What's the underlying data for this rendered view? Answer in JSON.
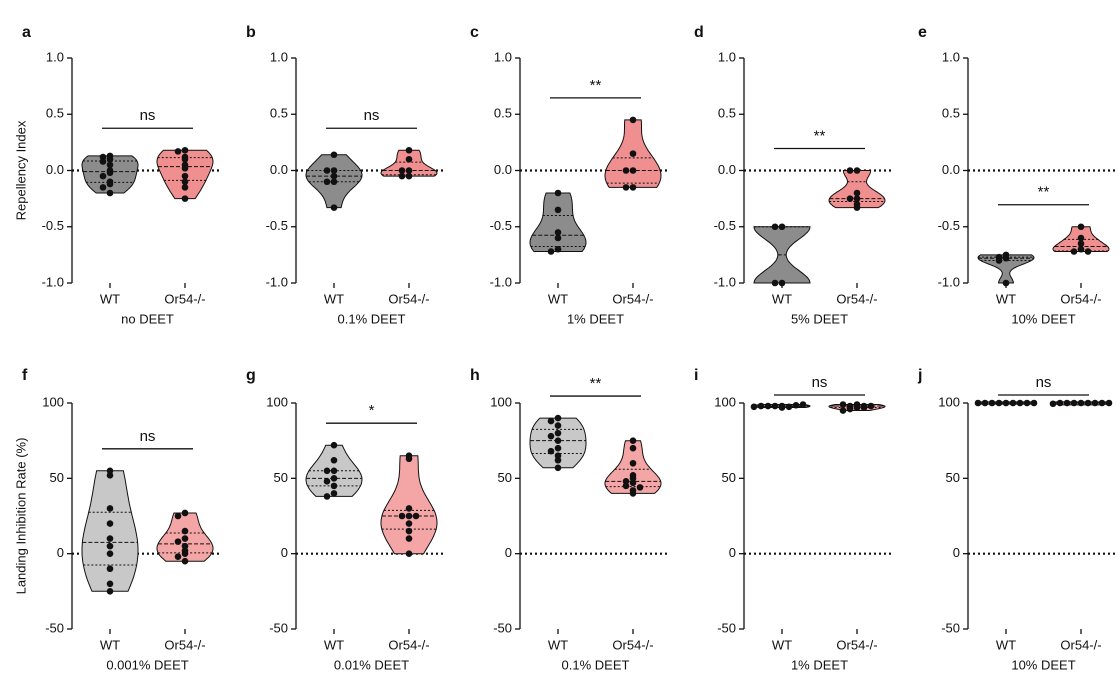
{
  "chart_data": [
    {
      "type": "violin",
      "panel": "a",
      "xlabel": "no DEET",
      "ylabel": "Repellency Index",
      "categories": [
        "WT",
        "Or54-/-"
      ],
      "significance": "ns",
      "reference_line": 0,
      "ylim": [
        -1,
        1
      ],
      "yticks": [
        {
          "value": -1,
          "label": "-1.0"
        },
        {
          "value": -0.5,
          "label": "-0.5"
        },
        {
          "value": 0,
          "label": "0.0"
        },
        {
          "value": 0.5,
          "label": "0.5"
        },
        {
          "value": 1,
          "label": "1.0"
        }
      ],
      "series": [
        {
          "name": "WT",
          "color": "#8c8c8c",
          "values": [
            0.13,
            0.12,
            0.1,
            0.08,
            0.05,
            0.0,
            -0.02,
            -0.05,
            -0.1,
            -0.12,
            -0.15,
            -0.2
          ]
        },
        {
          "name": "Or54-/-",
          "color": "#f08f8f",
          "values": [
            0.18,
            0.17,
            0.12,
            0.1,
            0.05,
            0.02,
            -0.05,
            -0.1,
            -0.15,
            -0.25
          ]
        }
      ]
    },
    {
      "type": "violin",
      "panel": "b",
      "xlabel": "0.1% DEET",
      "categories": [
        "WT",
        "Or54-/-"
      ],
      "significance": "ns",
      "reference_line": 0,
      "ylim": [
        -1,
        1
      ],
      "yticks": [
        {
          "value": -1,
          "label": "-1.0"
        },
        {
          "value": -0.5,
          "label": "-0.5"
        },
        {
          "value": 0,
          "label": "0.0"
        },
        {
          "value": 0.5,
          "label": "0.5"
        },
        {
          "value": 1,
          "label": "1.0"
        }
      ],
      "series": [
        {
          "name": "WT",
          "color": "#8c8c8c",
          "values": [
            0.14,
            0.0,
            0.0,
            -0.05,
            -0.1,
            -0.1,
            -0.33
          ]
        },
        {
          "name": "Or54-/-",
          "color": "#f08f8f",
          "values": [
            0.18,
            0.1,
            0.0,
            0.0,
            -0.05,
            -0.05
          ]
        }
      ]
    },
    {
      "type": "violin",
      "panel": "c",
      "xlabel": "1% DEET",
      "categories": [
        "WT",
        "Or54-/-"
      ],
      "significance": "**",
      "reference_line": 0,
      "ylim": [
        -1,
        1
      ],
      "yticks": [
        {
          "value": -1,
          "label": "-1.0"
        },
        {
          "value": -0.5,
          "label": "-0.5"
        },
        {
          "value": 0,
          "label": "0.0"
        },
        {
          "value": 0.5,
          "label": "0.5"
        },
        {
          "value": 1,
          "label": "1.0"
        }
      ],
      "series": [
        {
          "name": "WT",
          "color": "#8c8c8c",
          "values": [
            -0.2,
            -0.35,
            -0.55,
            -0.6,
            -0.7,
            -0.72
          ]
        },
        {
          "name": "Or54-/-",
          "color": "#f08f8f",
          "values": [
            0.45,
            0.15,
            0.0,
            0.0,
            -0.15,
            -0.15
          ]
        }
      ]
    },
    {
      "type": "violin",
      "panel": "d",
      "xlabel": "5% DEET",
      "categories": [
        "WT",
        "Or54-/-"
      ],
      "significance": "**",
      "reference_line": 0,
      "ylim": [
        -1,
        1
      ],
      "yticks": [
        {
          "value": -1,
          "label": "-1.0"
        },
        {
          "value": -0.5,
          "label": "-0.5"
        },
        {
          "value": 0,
          "label": "0.0"
        },
        {
          "value": 0.5,
          "label": "0.5"
        },
        {
          "value": 1,
          "label": "1.0"
        }
      ],
      "series": [
        {
          "name": "WT",
          "color": "#8c8c8c",
          "values": [
            -0.5,
            -0.5,
            -1.0,
            -1.0
          ]
        },
        {
          "name": "Or54-/-",
          "color": "#f08f8f",
          "values": [
            0.0,
            0.0,
            -0.2,
            -0.25,
            -0.25,
            -0.3,
            -0.33
          ]
        }
      ]
    },
    {
      "type": "violin",
      "panel": "e",
      "xlabel": "10% DEET",
      "categories": [
        "WT",
        "Or54-/-"
      ],
      "significance": "**",
      "reference_line": 0,
      "ylim": [
        -1,
        1
      ],
      "yticks": [
        {
          "value": -1,
          "label": "-1.0"
        },
        {
          "value": -0.5,
          "label": "-0.5"
        },
        {
          "value": 0,
          "label": "0.0"
        },
        {
          "value": 0.5,
          "label": "0.5"
        },
        {
          "value": 1,
          "label": "1.0"
        }
      ],
      "series": [
        {
          "name": "WT",
          "color": "#8c8c8c",
          "values": [
            -0.75,
            -0.77,
            -0.78,
            -0.8,
            -1.0
          ]
        },
        {
          "name": "Or54-/-",
          "color": "#f08f8f",
          "values": [
            -0.5,
            -0.6,
            -0.65,
            -0.7,
            -0.72,
            -0.72
          ]
        }
      ]
    },
    {
      "type": "violin",
      "panel": "f",
      "xlabel": "0.001% DEET",
      "ylabel": "Landing Inhibition Rate (%)",
      "categories": [
        "WT",
        "Or54-/-"
      ],
      "significance": "ns",
      "reference_line": 0,
      "ylim": [
        -50,
        100
      ],
      "yticks": [
        -50,
        0,
        50,
        100
      ],
      "series": [
        {
          "name": "WT",
          "color": "#c8c8c8",
          "values": [
            55,
            52,
            30,
            20,
            10,
            5,
            0,
            -10,
            -20,
            -25
          ]
        },
        {
          "name": "Or54-/-",
          "color": "#f4a6a6",
          "values": [
            27,
            25,
            15,
            10,
            8,
            5,
            2,
            0,
            -2,
            -5
          ]
        }
      ]
    },
    {
      "type": "violin",
      "panel": "g",
      "xlabel": "0.01% DEET",
      "categories": [
        "WT",
        "Or54-/-"
      ],
      "significance": "*",
      "reference_line": 0,
      "ylim": [
        -50,
        100
      ],
      "yticks": [
        -50,
        0,
        50,
        100
      ],
      "series": [
        {
          "name": "WT",
          "color": "#c8c8c8",
          "values": [
            72,
            62,
            55,
            55,
            50,
            48,
            45,
            40,
            38
          ]
        },
        {
          "name": "Or54-/-",
          "color": "#f4a6a6",
          "values": [
            65,
            63,
            30,
            25,
            25,
            25,
            20,
            15,
            10,
            0
          ]
        }
      ]
    },
    {
      "type": "violin",
      "panel": "h",
      "xlabel": "0.1% DEET",
      "categories": [
        "WT",
        "Or54-/-"
      ],
      "significance": "**",
      "reference_line": 0,
      "ylim": [
        -50,
        100
      ],
      "yticks": [
        -50,
        0,
        50,
        100
      ],
      "series": [
        {
          "name": "WT",
          "color": "#c8c8c8",
          "values": [
            90,
            88,
            85,
            80,
            78,
            75,
            70,
            68,
            65,
            62,
            57
          ]
        },
        {
          "name": "Or54-/-",
          "color": "#f4a6a6",
          "values": [
            75,
            70,
            60,
            52,
            50,
            48,
            47,
            45,
            44,
            42,
            40
          ]
        }
      ]
    },
    {
      "type": "violin",
      "panel": "i",
      "xlabel": "1% DEET",
      "categories": [
        "WT",
        "Or54-/-"
      ],
      "significance": "ns",
      "reference_line": 0,
      "ylim": [
        -50,
        100
      ],
      "yticks": [
        -50,
        0,
        50,
        100
      ],
      "series": [
        {
          "name": "WT",
          "color": "#c8c8c8",
          "values": [
            98,
            98,
            97.5,
            98,
            98.5,
            97,
            98,
            99,
            97.5
          ]
        },
        {
          "name": "Or54-/-",
          "color": "#f4a6a6",
          "values": [
            99,
            98,
            97,
            96,
            98,
            99,
            97,
            95,
            98
          ]
        }
      ]
    },
    {
      "type": "violin",
      "panel": "j",
      "xlabel": "10% DEET",
      "categories": [
        "WT",
        "Or54-/-"
      ],
      "significance": "ns",
      "reference_line": 0,
      "ylim": [
        -50,
        100
      ],
      "yticks": [
        -50,
        0,
        50,
        100
      ],
      "series": [
        {
          "name": "WT",
          "color": "#c8c8c8",
          "values": [
            100,
            100,
            100,
            100,
            100,
            100,
            100,
            100,
            100
          ]
        },
        {
          "name": "Or54-/-",
          "color": "#f4a6a6",
          "values": [
            100,
            100,
            100,
            100,
            100,
            100,
            100,
            99.5,
            100
          ]
        }
      ]
    }
  ]
}
